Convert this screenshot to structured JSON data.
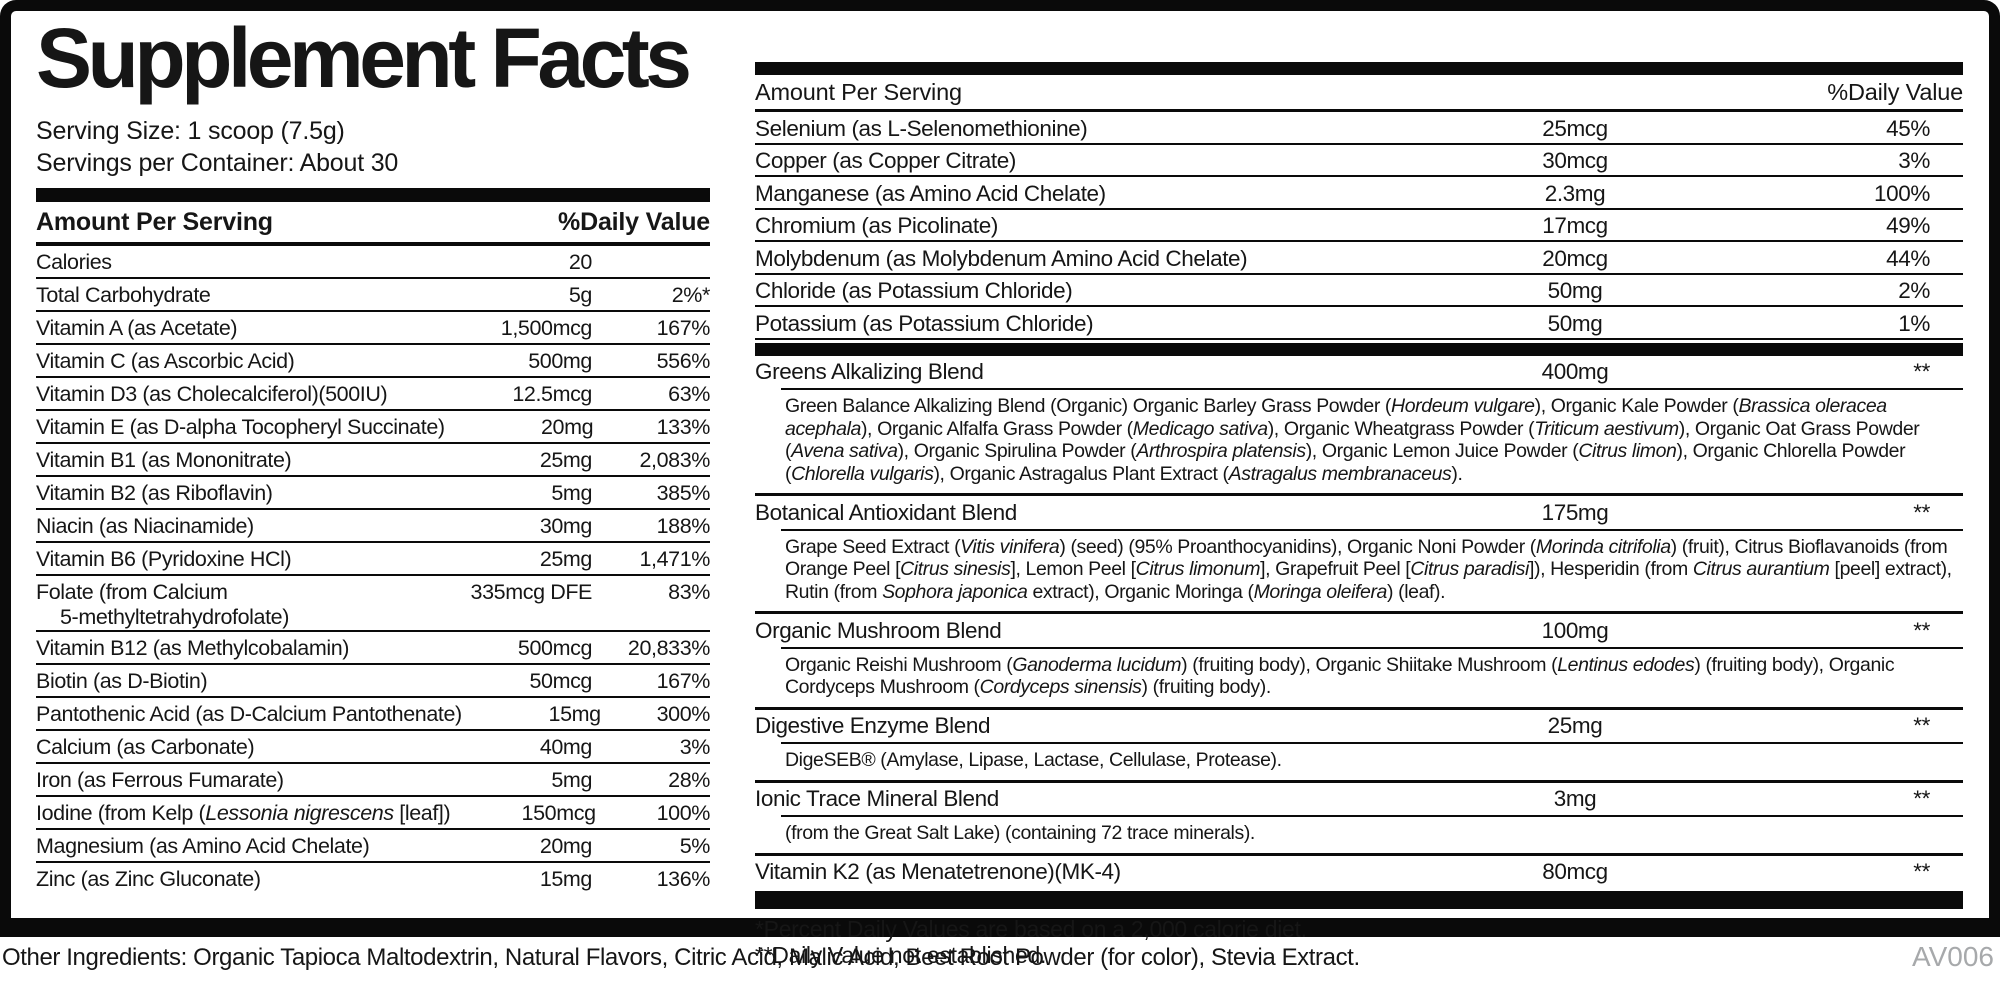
{
  "label": {
    "title": "Supplement Facts",
    "serving_size": "Serving Size: 1 scoop (7.5g)",
    "servings_per_container": "Servings per Container: About 30",
    "code": "AV006",
    "other_ingredients": "Other Ingredients: Organic Tapioca Maltodextrin, Natural Flavors, Citric Acid, Malic Acid, Beet Root Powder (for color), Stevia Extract."
  },
  "colors": {
    "ink": "#0a0a0a",
    "code_gray": "#a7a9ab",
    "background": "#ffffff"
  },
  "left_table": {
    "header": {
      "amount": "Amount Per Serving",
      "dv": "%Daily Value"
    },
    "rows": [
      {
        "name": "Calories",
        "amount": "20",
        "dv": ""
      },
      {
        "name": "Total Carbohydrate",
        "amount": "5g",
        "dv": "2%*"
      },
      {
        "name": "Vitamin A (as Acetate)",
        "amount": "1,500mcg",
        "dv": "167%"
      },
      {
        "name": "Vitamin C (as Ascorbic Acid)",
        "amount": "500mg",
        "dv": "556%"
      },
      {
        "name": "Vitamin D3 (as Cholecalciferol)(500IU)",
        "amount": "12.5mcg",
        "dv": "63%"
      },
      {
        "name": "Vitamin E (as D-alpha Tocopheryl Succinate)",
        "amount": "20mg",
        "dv": "133%"
      },
      {
        "name": "Vitamin B1 (as Mononitrate)",
        "amount": "25mg",
        "dv": "2,083%"
      },
      {
        "name": "Vitamin B2 (as Riboflavin)",
        "amount": "5mg",
        "dv": "385%"
      },
      {
        "name": "Niacin (as Niacinamide)",
        "amount": "30mg",
        "dv": "188%"
      },
      {
        "name": "Vitamin B6 (Pyridoxine HCl)",
        "amount": "25mg",
        "dv": "1,471%"
      },
      {
        "name": "Folate (from Calcium",
        "name2": "5-methyltetrahydrofolate)",
        "amount": "335mcg DFE",
        "dv": "83%"
      },
      {
        "name": "Vitamin B12 (as Methylcobalamin)",
        "amount": "500mcg",
        "dv": "20,833%"
      },
      {
        "name": "Biotin (as D-Biotin)",
        "amount": "50mcg",
        "dv": "167%"
      },
      {
        "name": "Pantothenic Acid (as D-Calcium Pantothenate)",
        "amount": "15mg",
        "dv": "300%"
      },
      {
        "name": "Calcium (as Carbonate)",
        "amount": "40mg",
        "dv": "3%"
      },
      {
        "name": "Iron (as Ferrous Fumarate)",
        "amount": "5mg",
        "dv": "28%"
      },
      {
        "name_segs": [
          {
            "t": "Iodine (from Kelp ("
          },
          {
            "t": "Lessonia nigrescens",
            "i": true
          },
          {
            "t": " [leaf])"
          }
        ],
        "amount": "150mcg",
        "dv": "100%"
      },
      {
        "name": "Magnesium (as Amino Acid Chelate)",
        "amount": "20mg",
        "dv": "5%"
      },
      {
        "name": "Zinc (as Zinc Gluconate)",
        "amount": "15mg",
        "dv": "136%"
      }
    ]
  },
  "right_table": {
    "header": {
      "amount": "Amount Per Serving",
      "dv": "%Daily Value"
    },
    "rows": [
      {
        "name": "Selenium (as L-Selenomethionine)",
        "amount": "25mcg",
        "dv": "45%"
      },
      {
        "name": "Copper (as Copper Citrate)",
        "amount": "30mcg",
        "dv": "3%"
      },
      {
        "name": "Manganese (as Amino Acid Chelate)",
        "amount": "2.3mg",
        "dv": "100%"
      },
      {
        "name": "Chromium (as Picolinate)",
        "amount": "17mcg",
        "dv": "49%"
      },
      {
        "name": "Molybdenum (as Molybdenum Amino Acid Chelate)",
        "amount": "20mcg",
        "dv": "44%"
      },
      {
        "name": "Chloride (as Potassium Chloride)",
        "amount": "50mg",
        "dv": "2%"
      },
      {
        "name": "Potassium (as Potassium Chloride)",
        "amount": "50mg",
        "dv": "1%"
      }
    ],
    "blends": [
      {
        "name": "Greens Alkalizing Blend",
        "amount": "400mg",
        "dv": "**",
        "desc": [
          {
            "t": "Green Balance Alkalizing Blend (Organic) Organic Barley Grass Powder ("
          },
          {
            "t": "Hordeum vulgare",
            "i": true
          },
          {
            "t": "), Organic Kale Powder ("
          },
          {
            "t": "Brassica oleracea acephala",
            "i": true
          },
          {
            "t": "), Organic Alfalfa Grass Powder ("
          },
          {
            "t": "Medicago sativa",
            "i": true
          },
          {
            "t": "), Organic Wheatgrass Powder ("
          },
          {
            "t": "Triticum aestivum",
            "i": true
          },
          {
            "t": "), Organic Oat Grass Powder ("
          },
          {
            "t": "Avena sativa",
            "i": true
          },
          {
            "t": "), Organic Spirulina Powder ("
          },
          {
            "t": "Arthrospira platensis",
            "i": true
          },
          {
            "t": "), Organic Lemon Juice Powder ("
          },
          {
            "t": "Citrus limon",
            "i": true
          },
          {
            "t": "), Organic Chlorella Powder ("
          },
          {
            "t": "Chlorella vulgaris",
            "i": true
          },
          {
            "t": "), Organic Astragalus Plant Extract ("
          },
          {
            "t": "Astragalus membranaceus",
            "i": true
          },
          {
            "t": ")."
          }
        ]
      },
      {
        "name": "Botanical Antioxidant Blend",
        "amount": "175mg",
        "dv": "**",
        "desc": [
          {
            "t": "Grape Seed Extract ("
          },
          {
            "t": "Vitis vinifera",
            "i": true
          },
          {
            "t": ") (seed) (95% Proanthocyanidins), Organic Noni Powder ("
          },
          {
            "t": "Morinda citrifolia",
            "i": true
          },
          {
            "t": ") (fruit), Citrus Bioflavanoids (from Orange Peel ["
          },
          {
            "t": "Citrus sinesis",
            "i": true
          },
          {
            "t": "], Lemon Peel ["
          },
          {
            "t": "Citrus limonum",
            "i": true
          },
          {
            "t": "], Grapefruit Peel ["
          },
          {
            "t": "Citrus paradisi",
            "i": true
          },
          {
            "t": "]), Hesperidin (from "
          },
          {
            "t": "Citrus aurantium",
            "i": true
          },
          {
            "t": " [peel] extract), Rutin (from "
          },
          {
            "t": "Sophora japonica",
            "i": true
          },
          {
            "t": " extract), Organic Moringa ("
          },
          {
            "t": "Moringa oleifera",
            "i": true
          },
          {
            "t": ") (leaf)."
          }
        ]
      },
      {
        "name": "Organic Mushroom Blend",
        "amount": "100mg",
        "dv": "**",
        "desc": [
          {
            "t": "Organic Reishi Mushroom ("
          },
          {
            "t": "Ganoderma lucidum",
            "i": true
          },
          {
            "t": ") (fruiting body), Organic Shiitake Mushroom ("
          },
          {
            "t": "Lentinus edodes",
            "i": true
          },
          {
            "t": ") (fruiting body), Organic Cordyceps Mushroom ("
          },
          {
            "t": "Cordyceps sinensis",
            "i": true
          },
          {
            "t": ") (fruiting body)."
          }
        ]
      },
      {
        "name": "Digestive Enzyme Blend",
        "amount": "25mg",
        "dv": "**",
        "desc": [
          {
            "t": "DigeSEB® (Amylase, Lipase, Lactase, Cellulase, Protease)."
          }
        ]
      },
      {
        "name": "Ionic Trace Mineral Blend",
        "amount": "3mg",
        "dv": "**",
        "desc": [
          {
            "t": "(from the Great Salt Lake) (containing 72 trace minerals)."
          }
        ]
      },
      {
        "name": "Vitamin K2 (as Menatetrenone)(MK-4)",
        "amount": "80mcg",
        "dv": "**"
      }
    ],
    "footnotes": [
      "*Percent Daily Values are based on a 2,000 calorie diet.",
      "**Daily Value not established."
    ]
  }
}
